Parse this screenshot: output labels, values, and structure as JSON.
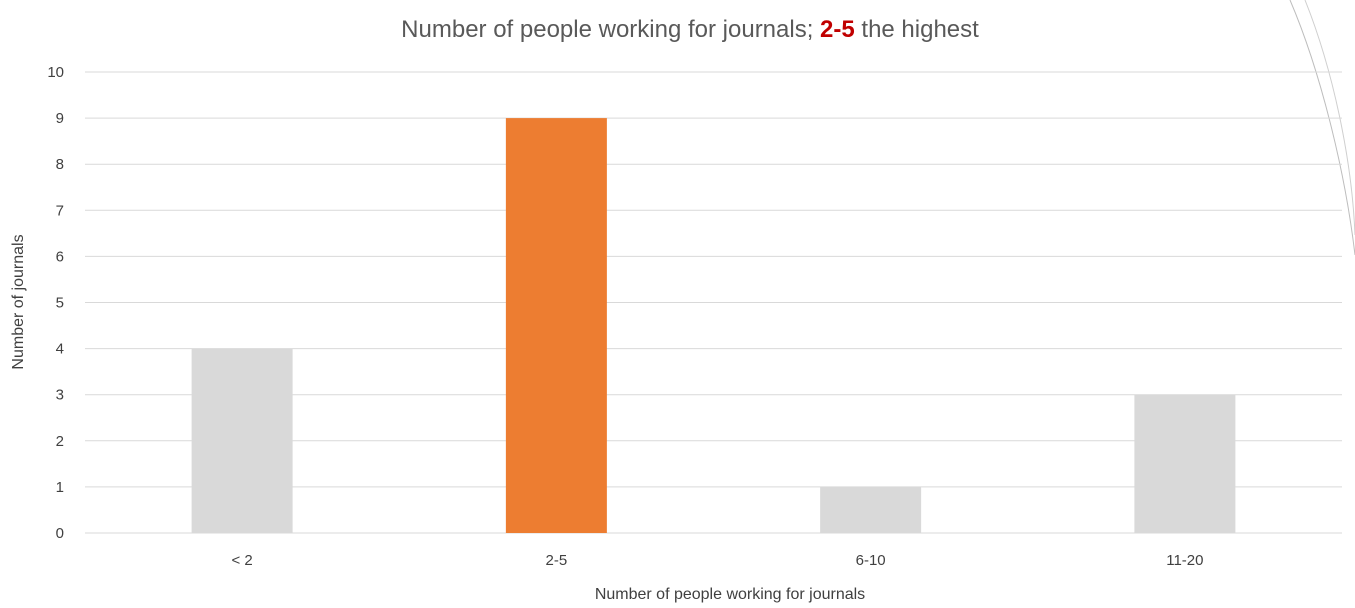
{
  "chart_data": {
    "type": "bar",
    "title": {
      "prefix": "Number of people working for journals; ",
      "highlight": "2-5",
      "suffix": " the highest"
    },
    "xlabel": "Number of people working for journals",
    "ylabel": "Number of journals",
    "categories": [
      "< 2",
      "2-5",
      "6-10",
      "11-20"
    ],
    "values": [
      4,
      9,
      1,
      3
    ],
    "highlight_index": 1,
    "ylim": [
      0,
      10
    ],
    "yticks": [
      "0",
      "1",
      "2",
      "3",
      "4",
      "5",
      "6",
      "7",
      "8",
      "9",
      "10"
    ],
    "grid": true,
    "colors": {
      "bar": "#d9d9d9",
      "highlight_bar": "#ed7d31",
      "highlight_text": "#c00000",
      "title": "#595959",
      "gridline": "#d9d9d9"
    }
  }
}
